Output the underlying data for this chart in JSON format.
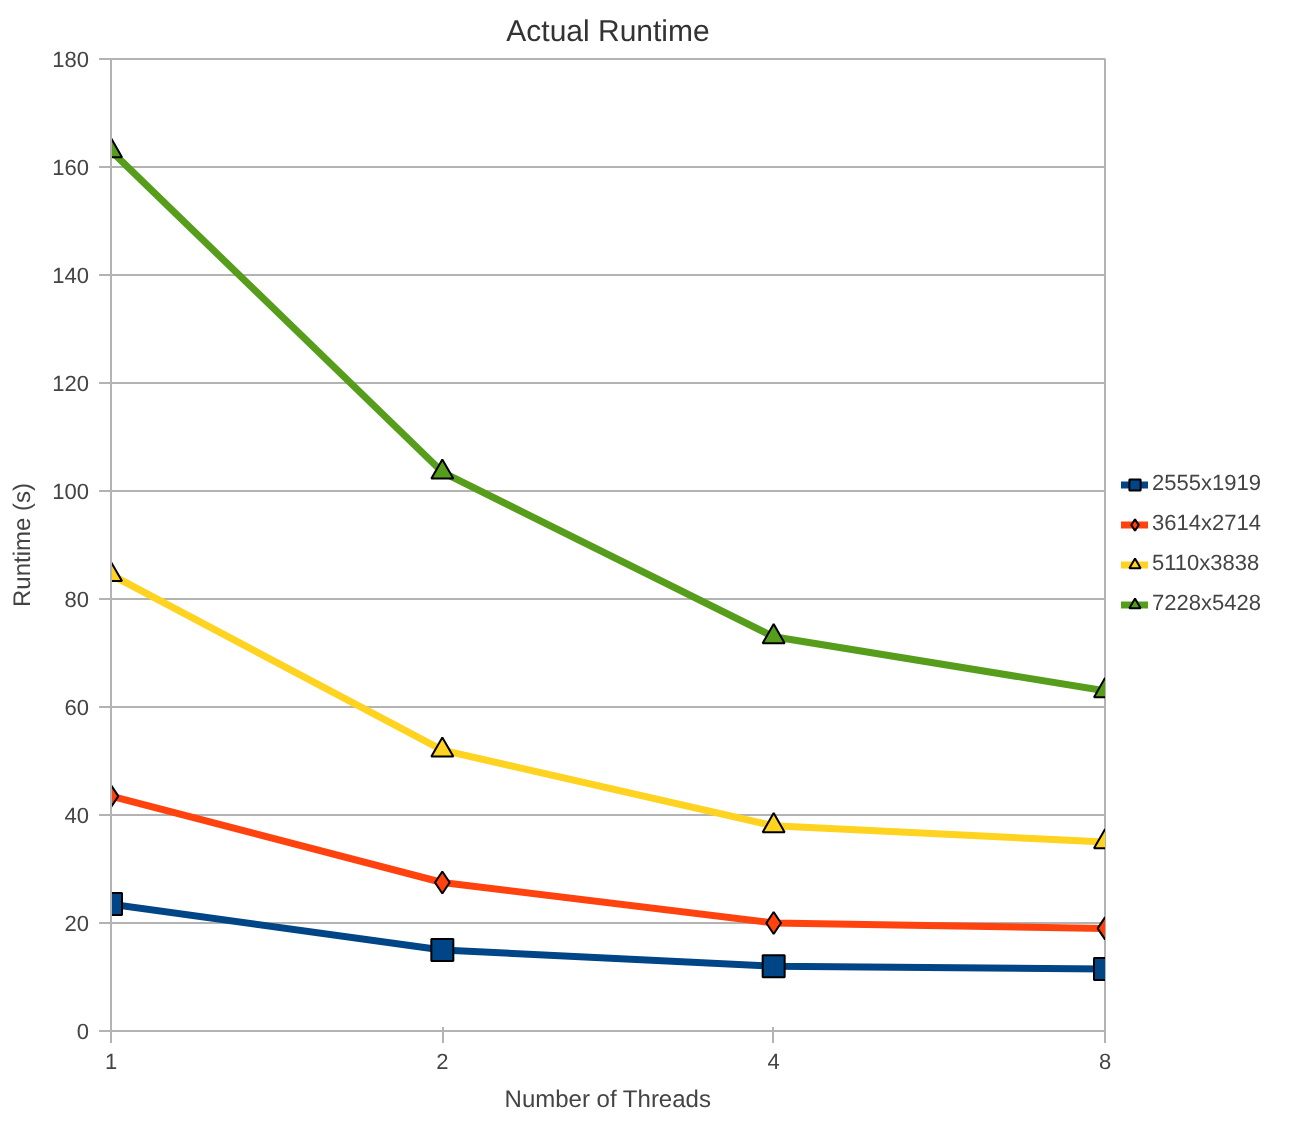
{
  "chart_data": {
    "type": "line",
    "title": "Actual Runtime",
    "xlabel": "Number of Threads",
    "ylabel": "Runtime (s)",
    "categories": [
      "1",
      "2",
      "4",
      "8"
    ],
    "series": [
      {
        "name": "2555x1919",
        "color": "#004586",
        "marker": "square",
        "values": [
          23.5,
          15,
          12,
          11.5
        ]
      },
      {
        "name": "3614x2714",
        "color": "#ff420e",
        "marker": "diamond",
        "values": [
          43.5,
          27.5,
          20,
          19
        ]
      },
      {
        "name": "5110x3838",
        "color": "#ffd320",
        "marker": "triangle",
        "values": [
          84.5,
          52,
          38,
          35
        ]
      },
      {
        "name": "7228x5428",
        "color": "#579d1c",
        "marker": "triangle",
        "values": [
          163,
          103.5,
          73,
          63
        ]
      }
    ],
    "ylim": [
      0,
      180
    ],
    "yticks": [
      0,
      20,
      40,
      60,
      80,
      100,
      120,
      140,
      160,
      180
    ],
    "grid": "y",
    "legend": "right"
  }
}
